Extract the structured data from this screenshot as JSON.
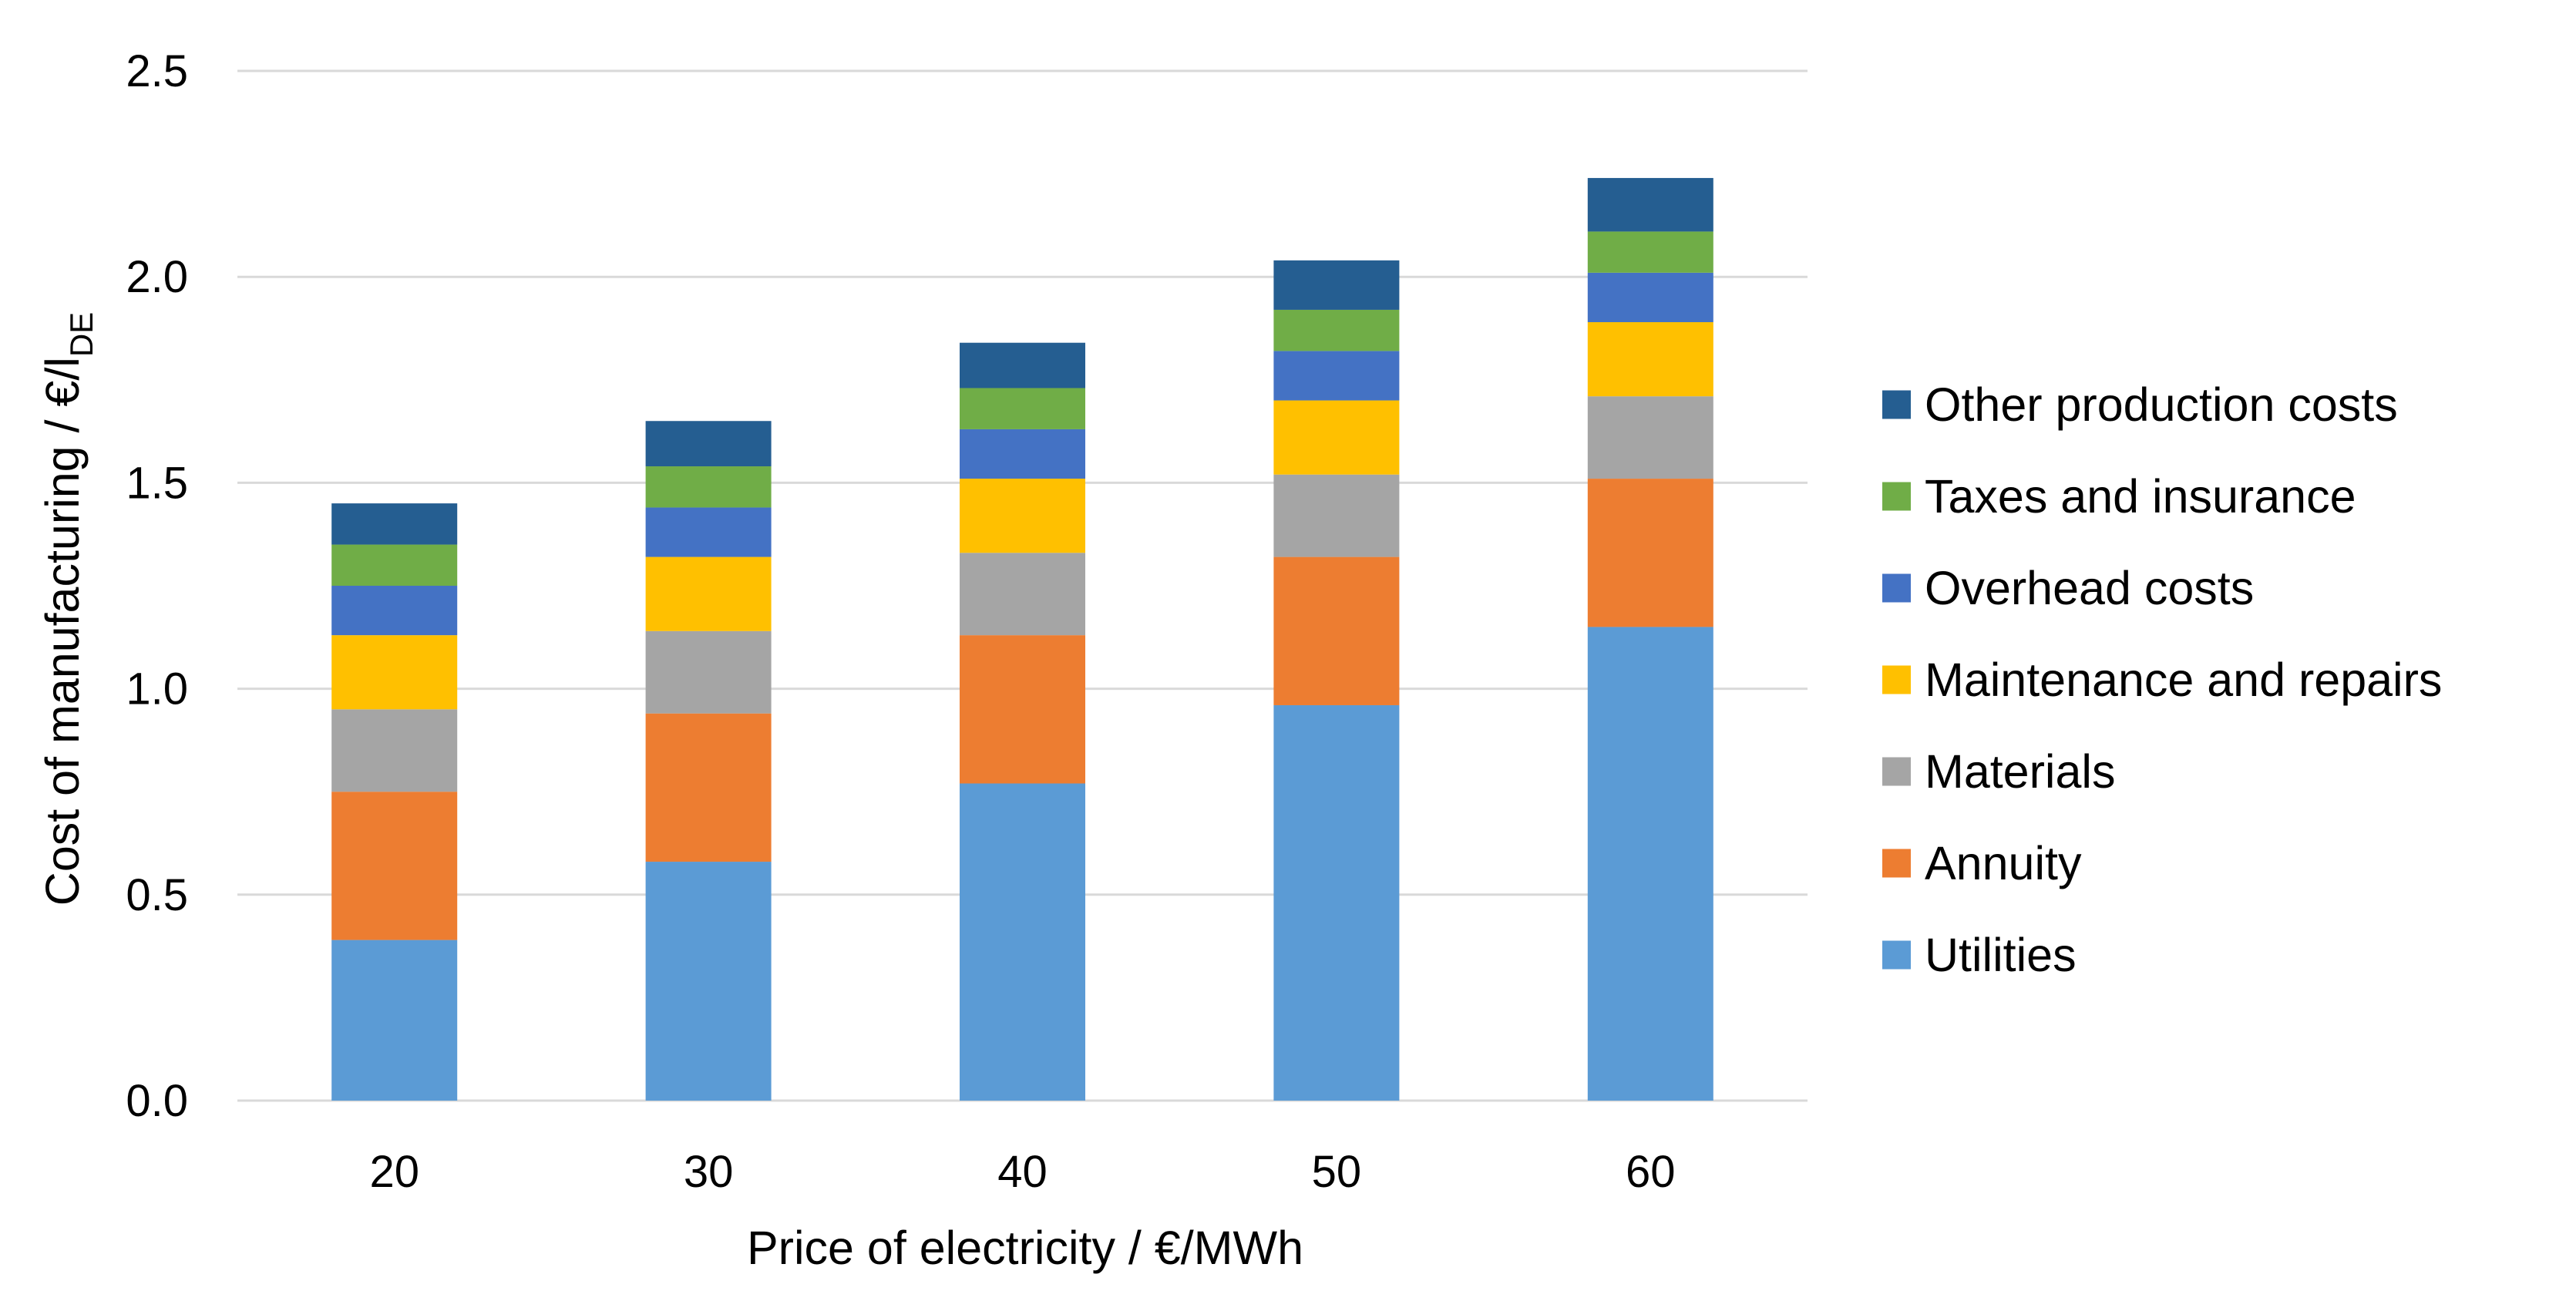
{
  "chart_data": {
    "type": "bar",
    "stacked": true,
    "xlabel": "Price of electricity / €/MWh",
    "ylabel": {
      "main": "Cost of manufacturing / €/l",
      "subscript": "DE"
    },
    "categories": [
      "20",
      "30",
      "40",
      "50",
      "60"
    ],
    "ylim": [
      0,
      2.5
    ],
    "yticks": [
      "0.0",
      "0.5",
      "1.0",
      "1.5",
      "2.0",
      "2.5"
    ],
    "ytick_values": [
      0,
      0.5,
      1.0,
      1.5,
      2.0,
      2.5
    ],
    "grid": true,
    "legend_position": "right",
    "series": [
      {
        "name": "Utilities",
        "color": "#5b9bd5",
        "values": [
          0.39,
          0.58,
          0.77,
          0.96,
          1.15
        ]
      },
      {
        "name": "Annuity",
        "color": "#ed7d31",
        "values": [
          0.36,
          0.36,
          0.36,
          0.36,
          0.36
        ]
      },
      {
        "name": "Materials",
        "color": "#a5a5a5",
        "values": [
          0.2,
          0.2,
          0.2,
          0.2,
          0.2
        ]
      },
      {
        "name": "Maintenance and repairs",
        "color": "#ffc000",
        "values": [
          0.18,
          0.18,
          0.18,
          0.18,
          0.18
        ]
      },
      {
        "name": "Overhead costs",
        "color": "#4472c4",
        "values": [
          0.12,
          0.12,
          0.12,
          0.12,
          0.12
        ]
      },
      {
        "name": "Taxes and insurance",
        "color": "#70ad47",
        "values": [
          0.1,
          0.1,
          0.1,
          0.1,
          0.1
        ]
      },
      {
        "name": "Other production costs",
        "color": "#255e91",
        "values": [
          0.1,
          0.11,
          0.11,
          0.12,
          0.13
        ]
      }
    ]
  }
}
